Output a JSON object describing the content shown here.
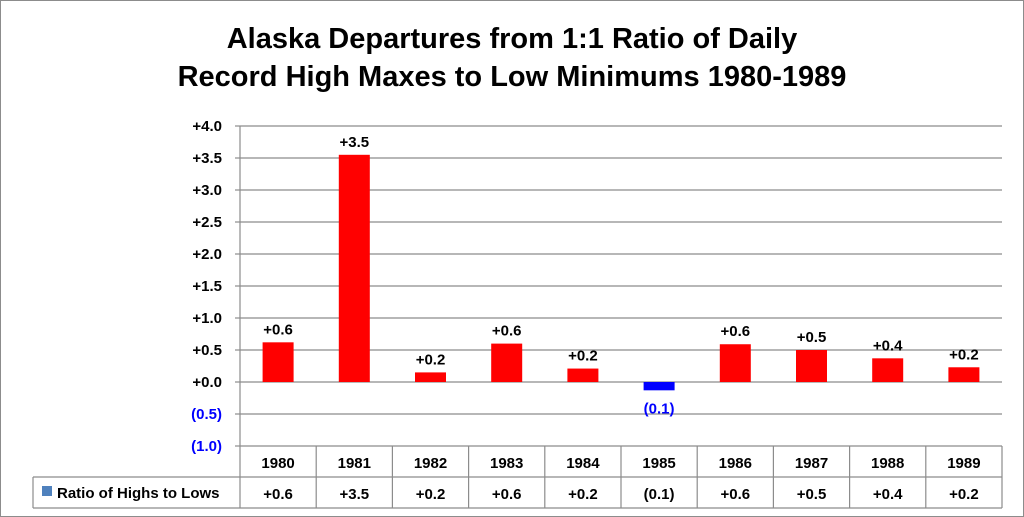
{
  "chart_data": {
    "type": "bar",
    "title_line1": "Alaska Departures from 1:1 Ratio of Daily",
    "title_line2": "Record High Maxes to Low Minimums 1980-1989",
    "categories": [
      "1980",
      "1981",
      "1982",
      "1983",
      "1984",
      "1985",
      "1986",
      "1987",
      "1988",
      "1989"
    ],
    "series": [
      {
        "name": "Ratio of Highs to Lows",
        "values": [
          0.62,
          3.55,
          0.15,
          0.6,
          0.21,
          -0.13,
          0.59,
          0.5,
          0.37,
          0.23
        ],
        "labels": [
          "+0.6",
          "+3.5",
          "+0.2",
          "+0.6",
          "+0.2",
          "(0.1)",
          "+0.6",
          "+0.5",
          "+0.4",
          "+0.2"
        ]
      }
    ],
    "y_ticks": [
      {
        "value": 4.0,
        "label": "+4.0"
      },
      {
        "value": 3.5,
        "label": "+3.5"
      },
      {
        "value": 3.0,
        "label": "+3.0"
      },
      {
        "value": 2.5,
        "label": "+2.5"
      },
      {
        "value": 2.0,
        "label": "+2.0"
      },
      {
        "value": 1.5,
        "label": "+1.5"
      },
      {
        "value": 1.0,
        "label": "+1.0"
      },
      {
        "value": 0.5,
        "label": "+0.5"
      },
      {
        "value": 0.0,
        "label": "+0.0"
      },
      {
        "value": -0.5,
        "label": "(0.5)"
      },
      {
        "value": -1.0,
        "label": "(1.0)"
      }
    ],
    "ylim": [
      -1.0,
      4.0
    ],
    "grid": true,
    "legend_in_data_table": true,
    "colors": {
      "positive": "#ff0000",
      "negative": "#0000ff",
      "legend_key": "#4f81bd",
      "negative_text": "#0000ff",
      "grid": "#8c8c8c"
    }
  }
}
